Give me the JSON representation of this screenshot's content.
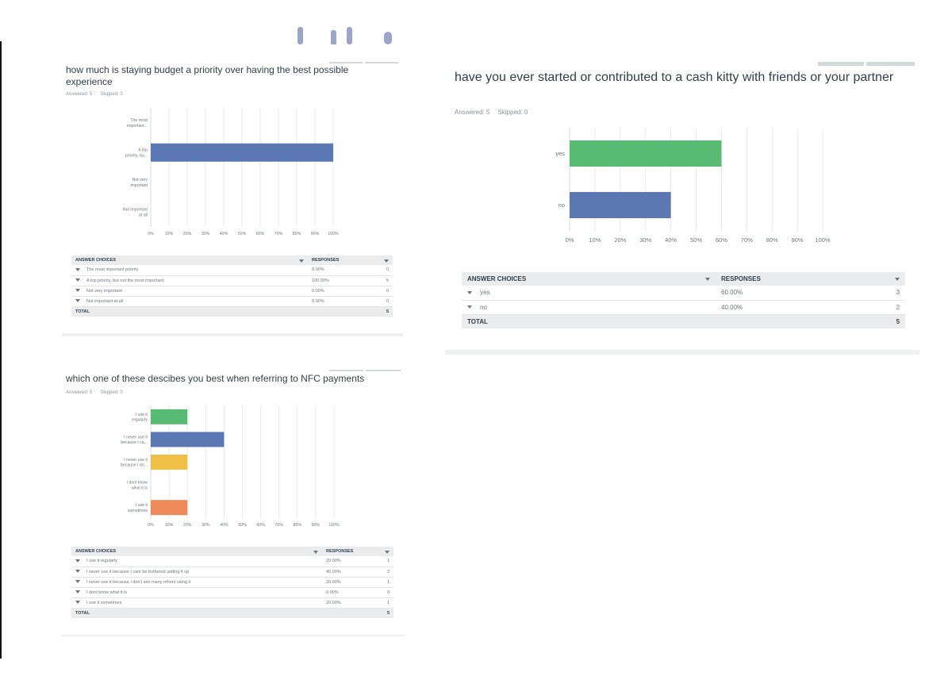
{
  "charts": [
    {
      "id": "budget",
      "question": "how much is staying budget a priority over having the best possible experience",
      "answered": "Answered: 5",
      "skipped": "Skipped: 0",
      "table_header": {
        "choices": "ANSWER CHOICES",
        "responses": "RESPONSES"
      },
      "rows": [
        {
          "choice": "The most important priority",
          "percent": "0.00%",
          "count": "0"
        },
        {
          "choice": "A top priority, but not the most important",
          "percent": "100.00%",
          "count": "5"
        },
        {
          "choice": "Not very important",
          "percent": "0.00%",
          "count": "0"
        },
        {
          "choice": "Not important at all",
          "percent": "0.00%",
          "count": "0"
        }
      ],
      "total_label": "TOTAL",
      "total_count": "5"
    },
    {
      "id": "kitty",
      "question": "have you ever started or contributed to  a cash kitty with friends or your partner",
      "answered": "Answered: 5",
      "skipped": "Skipped: 0",
      "table_header": {
        "choices": "ANSWER CHOICES",
        "responses": "RESPONSES"
      },
      "rows": [
        {
          "choice": "yes",
          "percent": "60.00%",
          "count": "3"
        },
        {
          "choice": "no",
          "percent": "40.00%",
          "count": "2"
        }
      ],
      "total_label": "TOTAL",
      "total_count": "5"
    },
    {
      "id": "nfc",
      "question": "which one of these descibes you best when referring to NFC payments",
      "answered": "Answered: 5",
      "skipped": "Skipped: 0",
      "table_header": {
        "choices": "ANSWER CHOICES",
        "responses": "RESPONSES"
      },
      "rows": [
        {
          "choice": "I use it regularly",
          "percent": "20.00%",
          "count": "1"
        },
        {
          "choice": "I never use it because I cant be bothered setting it up",
          "percent": "40.00%",
          "count": "2"
        },
        {
          "choice": "I never use it because I don't see many others using it",
          "percent": "20.00%",
          "count": "1"
        },
        {
          "choice": "I dont know what it is",
          "percent": "0.00%",
          "count": "0"
        },
        {
          "choice": "I use it sometimes",
          "percent": "20.00%",
          "count": "1"
        }
      ],
      "total_label": "TOTAL",
      "total_count": "5"
    }
  ],
  "chart_data": [
    {
      "type": "bar",
      "orientation": "horizontal",
      "categories": [
        [
          "The most",
          "important..."
        ],
        [
          "A top",
          "priority, bu..."
        ],
        [
          "Not very",
          "important"
        ],
        [
          "Not important",
          "at all"
        ]
      ],
      "values": [
        0,
        100,
        0,
        0
      ],
      "colors": [
        "#5b78b4",
        "#5b78b4",
        "#5b78b4",
        "#5b78b4"
      ],
      "xticks": [
        "0%",
        "10%",
        "20%",
        "30%",
        "40%",
        "50%",
        "60%",
        "70%",
        "80%",
        "90%",
        "100%"
      ],
      "xlim": [
        0,
        100
      ],
      "grid": true
    },
    {
      "type": "bar",
      "orientation": "horizontal",
      "categories": [
        [
          "yes"
        ],
        [
          "no"
        ]
      ],
      "values": [
        60,
        40
      ],
      "colors": [
        "#58bb73",
        "#5b78b4"
      ],
      "xticks": [
        "0%",
        "10%",
        "20%",
        "30%",
        "40%",
        "50%",
        "60%",
        "70%",
        "80%",
        "90%",
        "100%"
      ],
      "xlim": [
        0,
        100
      ],
      "grid": true
    },
    {
      "type": "bar",
      "orientation": "horizontal",
      "categories": [
        [
          "I use it",
          "regularly"
        ],
        [
          "I never use it",
          "because I ca..."
        ],
        [
          "I never use it",
          "because I do..."
        ],
        [
          "I dont know",
          "what it is"
        ],
        [
          "I use it",
          "sometimes"
        ]
      ],
      "values": [
        20,
        40,
        20,
        0,
        20
      ],
      "colors": [
        "#58bb73",
        "#5b78b4",
        "#efbf46",
        "#5b78b4",
        "#ee8a5a"
      ],
      "xticks": [
        "0%",
        "10%",
        "20%",
        "30%",
        "40%",
        "50%",
        "60%",
        "70%",
        "80%",
        "90%",
        "100%"
      ],
      "xlim": [
        0,
        100
      ],
      "grid": true
    }
  ]
}
